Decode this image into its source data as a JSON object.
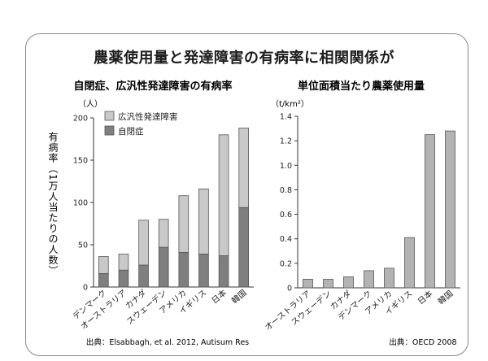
{
  "main_title": "農薬使用量と発達障害の有病率に相関関係が",
  "chart_data": [
    {
      "type": "bar",
      "stacked": true,
      "title": "自閉症、広汎性発達障害の有病率",
      "unit_label": "（人）",
      "ylabel": "有病率（1万人当たりの人数）",
      "ylim": [
        0,
        200
      ],
      "yticks": [
        "0",
        "50",
        "100",
        "150",
        "200"
      ],
      "categories": [
        "デンマーク",
        "オーストラリア",
        "カナダ",
        "スウェーデン",
        "アメリカ",
        "イギリス",
        "日本",
        "韓国"
      ],
      "series": [
        {
          "name": "自閉症",
          "color": "#7f7f7f",
          "values": [
            16,
            20,
            26,
            47,
            41,
            39,
            37,
            94
          ]
        },
        {
          "name": "広汎性発達障害",
          "color": "#c9c9c9",
          "values": [
            20,
            19,
            53,
            33,
            67,
            77,
            143,
            94
          ]
        }
      ],
      "source": "出典：Elsabbagh, et al. 2012, Autisum Res"
    },
    {
      "type": "bar",
      "title": "単位面積当たり農薬使用量",
      "unit_label": "（t/km²）",
      "ylim": [
        0,
        1.4
      ],
      "yticks": [
        "0",
        "0.2",
        "0.4",
        "0.6",
        "0.8",
        "1.0",
        "1.2",
        "1.4"
      ],
      "categories": [
        "オーストラリア",
        "スウェーデン",
        "カナダ",
        "デンマーク",
        "アメリカ",
        "イギリス",
        "日本",
        "韓国"
      ],
      "values": [
        0.07,
        0.07,
        0.09,
        0.14,
        0.16,
        0.41,
        1.25,
        1.28
      ],
      "color": "#b3b3b3",
      "source": "出典：OECD 2008"
    }
  ]
}
